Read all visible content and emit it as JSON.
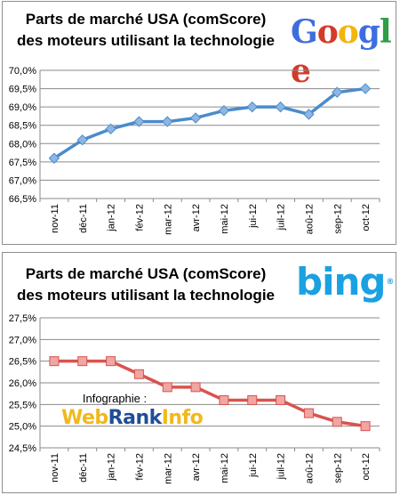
{
  "chart_data": [
    {
      "type": "line",
      "title": "Parts de marché USA (comScore)",
      "subtitle": "des moteurs utilisant la technologie",
      "logo_text": [
        "G",
        "o",
        "o",
        "g",
        "l",
        "e"
      ],
      "logo_colors": [
        "#3d6ee0",
        "#d33a2a",
        "#f2b50f",
        "#3d6ee0",
        "#2f9e46",
        "#d33a2a"
      ],
      "categories": [
        "nov-11",
        "déc-11",
        "jan-12",
        "fév-12",
        "mar-12",
        "avr-12",
        "mai-12",
        "jui-12",
        "juil-12",
        "aoû-12",
        "sep-12",
        "oct-12"
      ],
      "values": [
        67.6,
        68.1,
        68.4,
        68.6,
        68.6,
        68.7,
        68.9,
        69.0,
        69.0,
        68.8,
        69.4,
        69.5
      ],
      "ylim": [
        66.5,
        70.0
      ],
      "ytick_step": 0.5,
      "yticks": [
        "66,5%",
        "67,0%",
        "67,5%",
        "68,0%",
        "68,5%",
        "69,0%",
        "69,5%",
        "70,0%"
      ],
      "grid": true,
      "line_color": "#4a8ccc",
      "marker_color": "#8fb6e2",
      "marker": "diamond"
    },
    {
      "type": "line",
      "title": "Parts de marché USA (comScore)",
      "subtitle": "des moteurs utilisant la technologie",
      "logo_text": "bing",
      "categories": [
        "nov-11",
        "déc-11",
        "jan-12",
        "fév-12",
        "mar-12",
        "avr-12",
        "mai-12",
        "jui-12",
        "juil-12",
        "aoû-12",
        "sep-12",
        "oct-12"
      ],
      "values": [
        26.5,
        26.5,
        26.5,
        26.2,
        25.9,
        25.9,
        25.6,
        25.6,
        25.6,
        25.3,
        25.1,
        25.0
      ],
      "ylim": [
        24.5,
        27.5
      ],
      "ytick_step": 0.5,
      "yticks": [
        "24,5%",
        "25,0%",
        "25,5%",
        "26,0%",
        "26,5%",
        "27,0%",
        "27,5%"
      ],
      "grid": true,
      "line_color": "#d9534f",
      "marker_color": "#f0a6a3",
      "marker": "square"
    }
  ],
  "watermark": {
    "label": "Infographie :",
    "brand_web": "Web",
    "brand_rank": "Rank",
    "brand_info": "Info"
  }
}
